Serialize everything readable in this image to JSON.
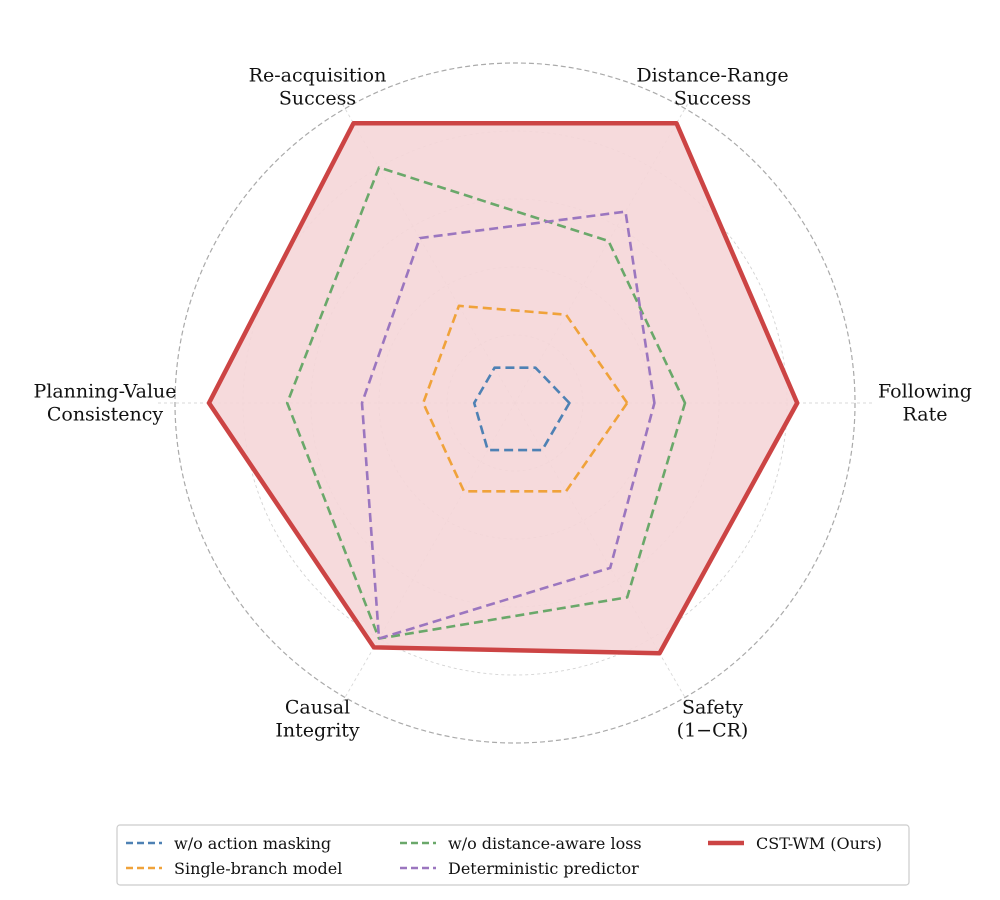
{
  "chart_data": {
    "type": "radar",
    "title": "",
    "axes": [
      {
        "name": "fr",
        "lines": [
          "Following",
          "Rate"
        ]
      },
      {
        "name": "drs",
        "lines": [
          "Distance-Range",
          "Success"
        ]
      },
      {
        "name": "ras",
        "lines": [
          "Re-acquisition",
          "Success"
        ]
      },
      {
        "name": "pvc",
        "lines": [
          "Planning-Value",
          "Consistency"
        ]
      },
      {
        "name": "ci",
        "lines": [
          "Causal",
          "Integrity"
        ]
      },
      {
        "name": "safety",
        "lines": [
          "Safety",
          "(1−CR)"
        ]
      }
    ],
    "range": [
      0,
      1
    ],
    "rings": [
      0.2,
      0.4,
      0.6,
      0.8,
      1.0
    ],
    "grid": true,
    "legend_position": "bottom-center",
    "series": [
      {
        "name": "w/o action masking",
        "color": "#4e81b4",
        "style": "dashed",
        "fill": false,
        "values": [
          0.16,
          0.12,
          0.12,
          0.12,
          0.16,
          0.16
        ]
      },
      {
        "name": "Single-branch model",
        "color": "#f0a23a",
        "style": "dashed",
        "fill": false,
        "values": [
          0.33,
          0.3,
          0.33,
          0.27,
          0.3,
          0.3
        ]
      },
      {
        "name": "w/o distance-aware loss",
        "color": "#6aa86a",
        "style": "dashed",
        "fill": false,
        "values": [
          0.5,
          0.55,
          0.8,
          0.67,
          0.8,
          0.66
        ]
      },
      {
        "name": "Deterministic predictor",
        "color": "#9b76bf",
        "style": "dashed",
        "fill": false,
        "values": [
          0.41,
          0.65,
          0.56,
          0.45,
          0.8,
          0.56
        ]
      },
      {
        "name": "CST-WM (Ours)",
        "color": "#cc4444",
        "style": "solid",
        "fill": true,
        "fill_color": "#f5d6d8",
        "values": [
          0.83,
          0.95,
          0.95,
          0.9,
          0.83,
          0.85
        ]
      }
    ]
  }
}
